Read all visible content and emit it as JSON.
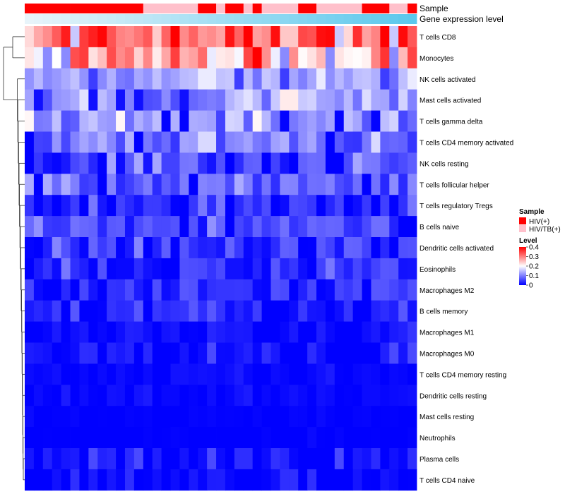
{
  "chart_data": {
    "type": "heatmap",
    "annotation_labels": {
      "sample": "Sample",
      "expression": "Gene expression level"
    },
    "legend": {
      "sample_title": "Sample",
      "sample_entries": [
        {
          "label": "HIV(+)",
          "color": "#ff0000"
        },
        {
          "label": "HIV/TB(+)",
          "color": "#ffc0cb"
        }
      ],
      "level_title": "Level",
      "level_ticks": [
        "0.4",
        "0.3",
        "0.2",
        "0.1",
        "0"
      ],
      "level_tick_values": [
        0.4,
        0.3,
        0.2,
        0.1,
        0
      ]
    },
    "color_scale": {
      "min": 0,
      "mid": 0.2,
      "max": 0.4,
      "low": "#0000ff",
      "midcolor": "#ffffff",
      "high": "#ff0000"
    },
    "expression_gradient": [
      "#e8f4fa",
      "#5bc8ec"
    ],
    "n_samples": 43,
    "sample_groups": [
      0,
      0,
      0,
      0,
      0,
      0,
      0,
      0,
      0,
      0,
      0,
      0,
      0,
      1,
      1,
      1,
      1,
      1,
      1,
      0,
      0,
      1,
      0,
      0,
      1,
      0,
      1,
      1,
      1,
      1,
      0,
      0,
      1,
      1,
      1,
      1,
      1,
      0,
      0,
      0,
      1,
      1,
      0
    ],
    "rows": [
      {
        "name": "T cells CD8",
        "base": 0.32,
        "spread": 0.09
      },
      {
        "name": "Monocytes",
        "base": 0.27,
        "spread": 0.09
      },
      {
        "name": "NK cells activated",
        "base": 0.12,
        "spread": 0.04
      },
      {
        "name": "Mast cells activated",
        "base": 0.12,
        "spread": 0.06
      },
      {
        "name": "T cells gamma delta",
        "base": 0.11,
        "spread": 0.06
      },
      {
        "name": "T cells CD4 memory activated",
        "base": 0.09,
        "spread": 0.05
      },
      {
        "name": "NK cells resting",
        "base": 0.05,
        "spread": 0.05
      },
      {
        "name": "T cells follicular helper",
        "base": 0.07,
        "spread": 0.04
      },
      {
        "name": "T cells regulatory  Tregs",
        "base": 0.03,
        "spread": 0.04
      },
      {
        "name": "B cells naive",
        "base": 0.05,
        "spread": 0.04
      },
      {
        "name": "Dendritic cells activated",
        "base": 0.04,
        "spread": 0.04
      },
      {
        "name": "Eosinophils",
        "base": 0.03,
        "spread": 0.04
      },
      {
        "name": "Macrophages M2",
        "base": 0.03,
        "spread": 0.04
      },
      {
        "name": "B cells memory",
        "base": 0.02,
        "spread": 0.03
      },
      {
        "name": "Macrophages M1",
        "base": 0.01,
        "spread": 0.02
      },
      {
        "name": "Macrophages M0",
        "base": 0.01,
        "spread": 0.03
      },
      {
        "name": "T cells CD4 memory resting",
        "base": 0.005,
        "spread": 0.01
      },
      {
        "name": "Dendritic cells resting",
        "base": 0.005,
        "spread": 0.01
      },
      {
        "name": "Mast cells resting",
        "base": 0.0,
        "spread": 0.005
      },
      {
        "name": "Neutrophils",
        "base": 0.0,
        "spread": 0.005
      },
      {
        "name": "Plasma cells",
        "base": 0.01,
        "spread": 0.03
      },
      {
        "name": "T cells CD4 naive",
        "base": 0.005,
        "spread": 0.02
      }
    ]
  }
}
